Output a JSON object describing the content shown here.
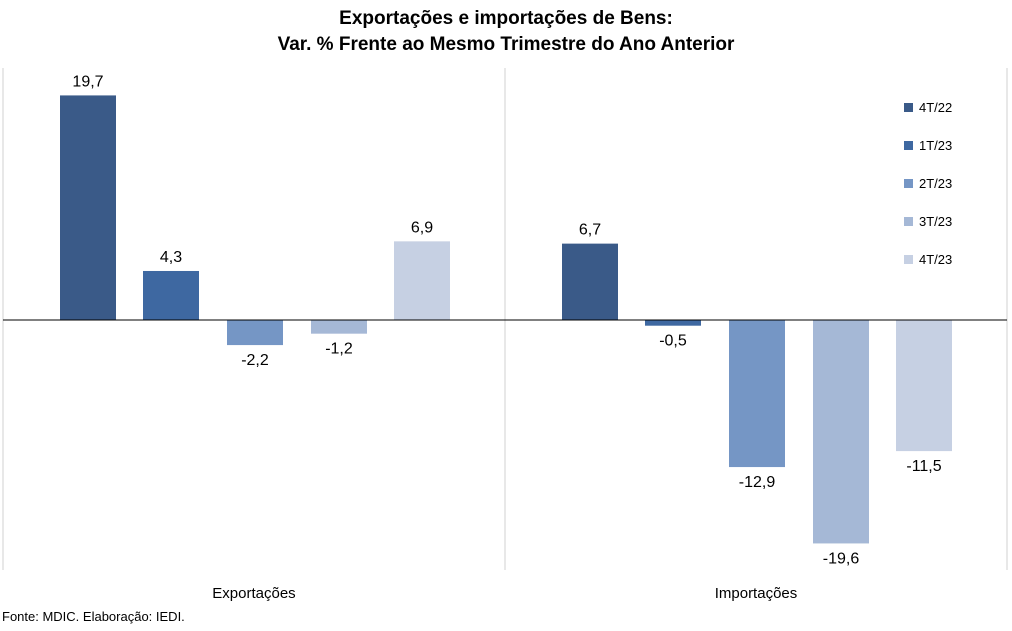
{
  "title_line1": "Exportações e importações de Bens:",
  "title_line2": "Var. % Frente ao Mesmo Trimestre do Ano Anterior",
  "source": "Fonte: MDIC. Elaboração: IEDI.",
  "colors": {
    "4T/22": "#3a5a88",
    "1T/23": "#3e68a1",
    "2T/23": "#7596c5",
    "3T/23": "#a5b8d6",
    "4T/23": "#c6d0e3"
  },
  "chart_data": {
    "type": "bar",
    "categories": [
      "Exportações",
      "Importações"
    ],
    "series": [
      {
        "name": "4T/22",
        "values": [
          19.7,
          6.7
        ],
        "labels": [
          "19,7",
          "6,7"
        ]
      },
      {
        "name": "1T/23",
        "values": [
          4.3,
          -0.5
        ],
        "labels": [
          "4,3",
          "-0,5"
        ]
      },
      {
        "name": "2T/23",
        "values": [
          -2.2,
          -12.9
        ],
        "labels": [
          "-2,2",
          "-12,9"
        ]
      },
      {
        "name": "3T/23",
        "values": [
          -1.2,
          -19.6
        ],
        "labels": [
          "-1,2",
          "-19,6"
        ]
      },
      {
        "name": "4T/23",
        "values": [
          6.9,
          -11.5
        ],
        "labels": [
          "6,9",
          "-11,5"
        ]
      }
    ],
    "legend_position": "right",
    "grid": false
  }
}
